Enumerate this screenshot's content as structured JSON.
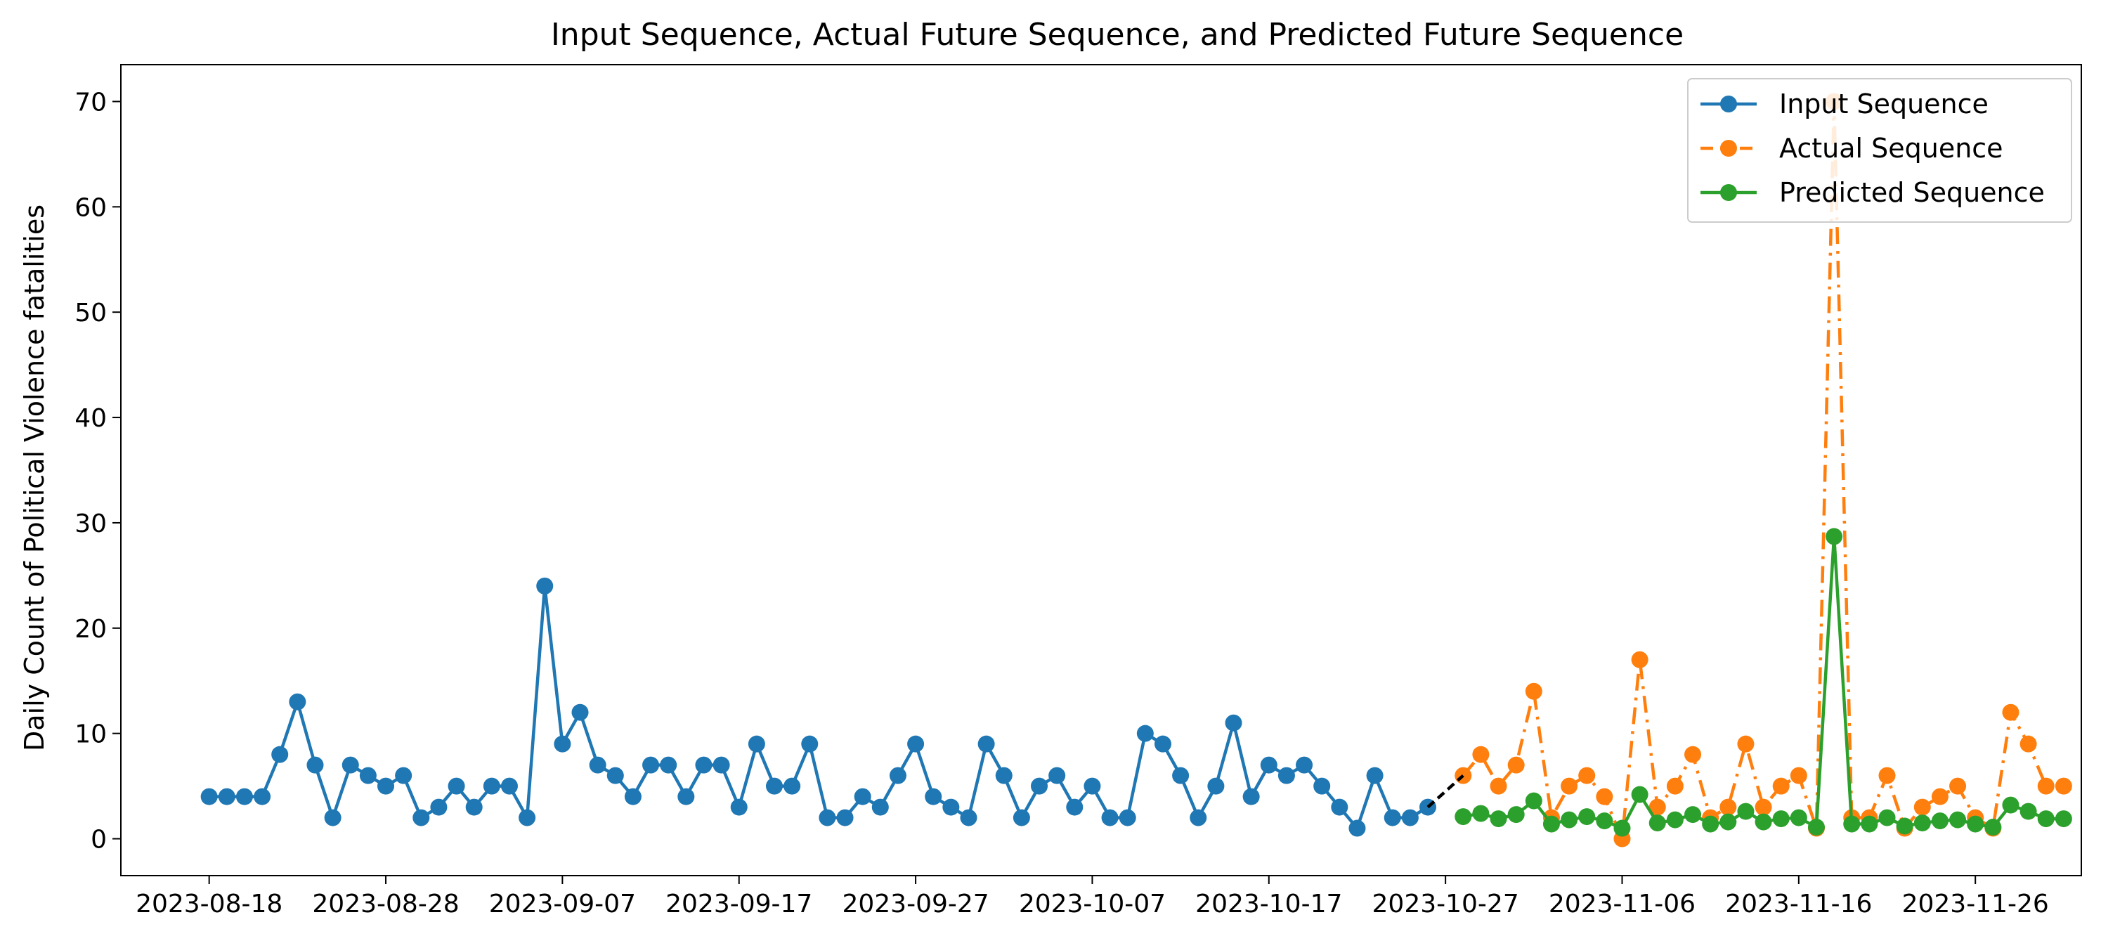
{
  "chart_data": {
    "type": "line",
    "title": "Input Sequence, Actual Future Sequence, and Predicted Future Sequence",
    "xlabel": "",
    "ylabel": "Daily Count of Political Violence fatalities",
    "x_start": "2023-08-18",
    "x_ticks": [
      "2023-08-18",
      "2023-08-28",
      "2023-09-07",
      "2023-09-17",
      "2023-09-27",
      "2023-10-07",
      "2023-10-17",
      "2023-10-27",
      "2023-11-06",
      "2023-11-16",
      "2023-11-26"
    ],
    "xlim": [
      "2023-08-13",
      "2023-12-02"
    ],
    "ylim": [
      -3.5,
      73.5
    ],
    "y_ticks": [
      0,
      10,
      20,
      30,
      40,
      50,
      60,
      70
    ],
    "grid": false,
    "legend_position": "top-right",
    "connector_color": "#000000",
    "series": [
      {
        "name": "Input Sequence",
        "color": "#1f77b4",
        "line_style": "solid",
        "x_start": "2023-08-18",
        "values": [
          4,
          4,
          4,
          4,
          8,
          13,
          7,
          2,
          7,
          6,
          5,
          6,
          2,
          3,
          5,
          3,
          5,
          5,
          2,
          24,
          9,
          12,
          7,
          6,
          4,
          7,
          7,
          4,
          7,
          7,
          3,
          9,
          5,
          5,
          9,
          2,
          2,
          4,
          3,
          6,
          9,
          4,
          3,
          2,
          9,
          6,
          2,
          5,
          6,
          3,
          5,
          2,
          2,
          10,
          9,
          6,
          2,
          5,
          11,
          4,
          7,
          6,
          7,
          5,
          3,
          1,
          6,
          2,
          2,
          3
        ]
      },
      {
        "name": "Actual Sequence",
        "color": "#ff7f0e",
        "line_style": "dashdot",
        "x_start": "2023-10-28",
        "values": [
          6,
          8,
          5,
          7,
          14,
          2,
          5,
          6,
          4,
          0,
          17,
          3,
          5,
          8,
          2,
          3,
          9,
          3,
          5,
          6,
          1,
          70,
          2,
          2,
          6,
          1,
          3,
          4,
          5,
          2,
          1,
          12,
          9,
          5,
          5
        ]
      },
      {
        "name": "Predicted Sequence",
        "color": "#2ca02c",
        "line_style": "solid",
        "x_start": "2023-10-28",
        "values": [
          2.1,
          2.4,
          1.9,
          2.3,
          3.6,
          1.4,
          1.8,
          2.1,
          1.7,
          1.0,
          4.2,
          1.5,
          1.8,
          2.3,
          1.4,
          1.6,
          2.6,
          1.6,
          1.9,
          2.0,
          1.1,
          28.7,
          1.4,
          1.4,
          2.0,
          1.2,
          1.5,
          1.7,
          1.8,
          1.4,
          1.1,
          3.2,
          2.6,
          1.9,
          1.9
        ]
      }
    ]
  }
}
